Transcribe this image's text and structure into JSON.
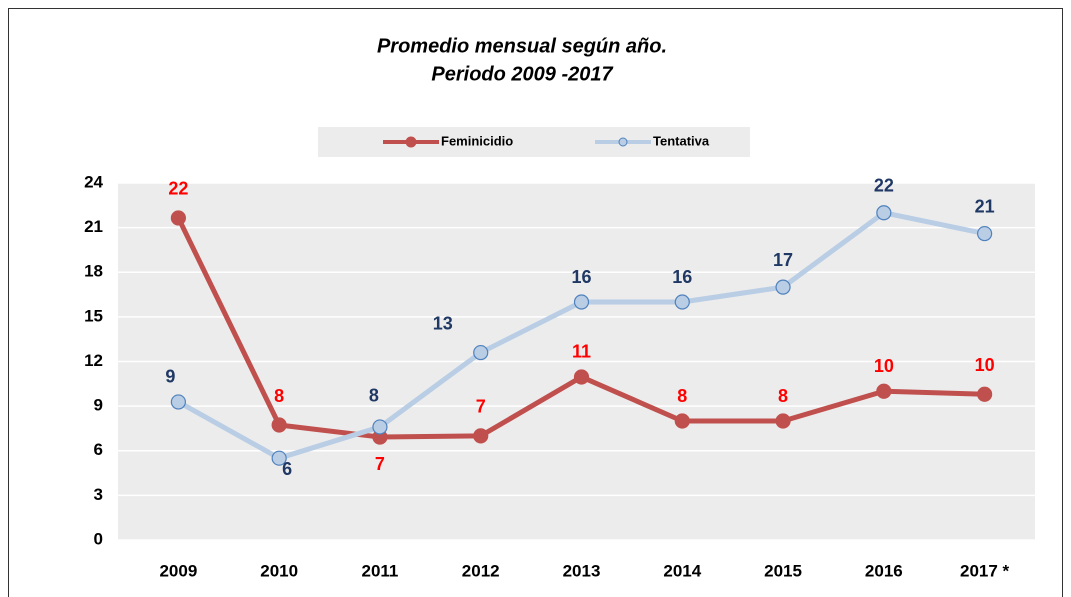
{
  "chart_data": {
    "type": "line",
    "title": "Promedio mensual según año.",
    "subtitle": "Periodo 2009 -2017",
    "categories": [
      "2009",
      "2010",
      "2011",
      "2012",
      "2013",
      "2014",
      "2015",
      "2016",
      "2017 *"
    ],
    "series": [
      {
        "name": "Feminicidio",
        "color": "#c0504d",
        "label_color": "#ff0000",
        "values": [
          21.65,
          7.73,
          6.92,
          7.0,
          10.96,
          8.0,
          8.0,
          10.0,
          9.8
        ],
        "value_labels": [
          "22",
          "8",
          "7",
          "7",
          "11",
          "8",
          "8",
          "10",
          "10"
        ]
      },
      {
        "name": "Tentativa",
        "color": "#b9cde5",
        "label_color": "#1f3864",
        "values": [
          9.28,
          5.5,
          7.6,
          12.6,
          16.0,
          16.0,
          17.0,
          22.0,
          20.6
        ],
        "value_labels": [
          "9",
          "6",
          "8",
          "13",
          "16",
          "16",
          "17",
          "22",
          "21"
        ]
      }
    ],
    "ylim": [
      0,
      24
    ],
    "yticks": [
      0,
      3,
      6,
      9,
      12,
      15,
      18,
      21,
      24
    ],
    "grid": true,
    "legend": "top"
  }
}
